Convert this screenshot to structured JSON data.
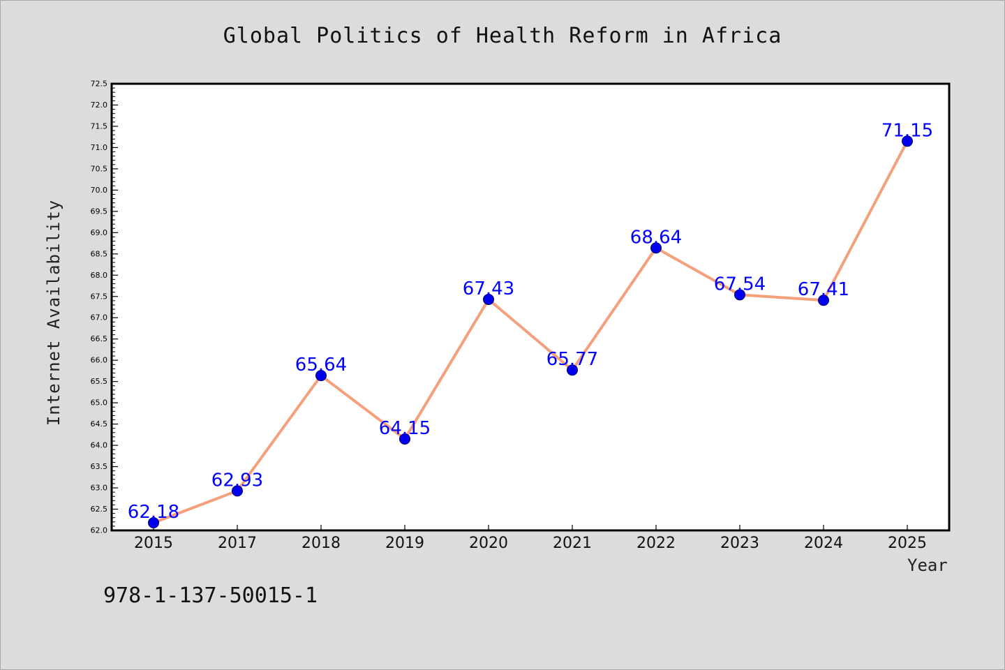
{
  "chart_data": {
    "type": "line",
    "title": "Global Politics of Health Reform in Africa",
    "xlabel": "Year",
    "ylabel": "Internet Availability",
    "categories": [
      "2015",
      "2017",
      "2018",
      "2019",
      "2020",
      "2021",
      "2022",
      "2023",
      "2024",
      "2025"
    ],
    "series": [
      {
        "values": [
          62.18,
          62.93,
          65.64,
          64.15,
          67.43,
          65.77,
          68.64,
          67.54,
          67.41,
          71.15
        ]
      }
    ],
    "data_labels": [
      "62.18",
      "62.93",
      "65.64",
      "64.15",
      "67.43",
      "65.77",
      "68.64",
      "67.54",
      "67.41",
      "71.15"
    ],
    "ylim": [
      62.0,
      72.5
    ],
    "ytick_step": 0.5,
    "grid": false,
    "legend": "none",
    "colors": {
      "line": "#f4a07c",
      "marker": "#0000ee",
      "marker_edge": "#000066",
      "label": "#0000ff",
      "plot_bg": "#ffffff",
      "page_bg": "#dcdcdc"
    }
  },
  "footnote": "978-1-137-50015-1"
}
